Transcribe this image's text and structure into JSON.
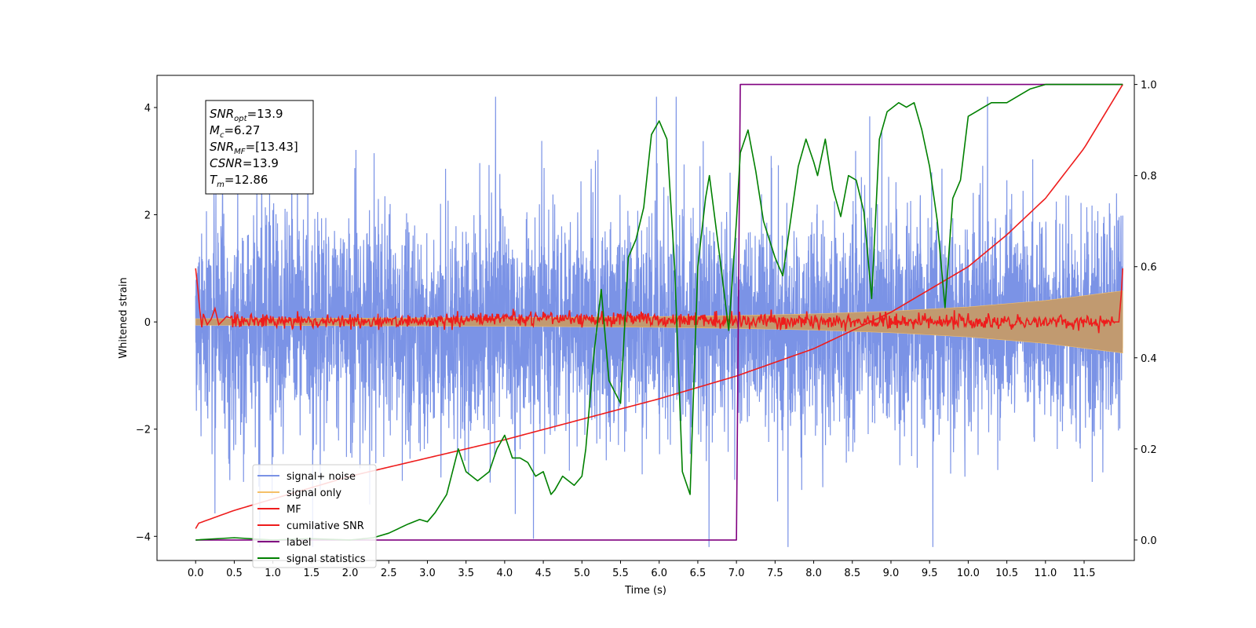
{
  "chart_data": {
    "type": "line",
    "xlabel": "Time (s)",
    "ylabel": "Whitened strain",
    "xlim": [
      -0.5,
      12.15
    ],
    "ylim": [
      -4.45,
      4.6
    ],
    "y2lim": [
      -0.045,
      1.02
    ],
    "x_ticks": [
      0.0,
      0.5,
      1.0,
      1.5,
      2.0,
      2.5,
      3.0,
      3.5,
      4.0,
      4.5,
      5.0,
      5.5,
      6.0,
      6.5,
      7.0,
      7.5,
      8.0,
      8.5,
      9.0,
      9.5,
      10.0,
      10.5,
      11.0,
      11.5
    ],
    "x_tick_labels": [
      "0.0",
      "0.5",
      "1.0",
      "1.5",
      "2.0",
      "2.5",
      "3.0",
      "3.5",
      "4.0",
      "4.5",
      "5.0",
      "5.5",
      "6.0",
      "6.5",
      "7.0",
      "7.5",
      "8.0",
      "8.5",
      "9.0",
      "9.5",
      "10.0",
      "10.5",
      "11.0",
      "11.5"
    ],
    "y_ticks": [
      -4,
      -2,
      0,
      2,
      4
    ],
    "y_tick_labels": [
      "−4",
      "−2",
      "0",
      "2",
      "4"
    ],
    "y2_ticks": [
      0.0,
      0.2,
      0.4,
      0.6,
      0.8,
      1.0
    ],
    "y2_tick_labels": [
      "0.0",
      "0.2",
      "0.4",
      "0.6",
      "0.8",
      "1.0"
    ],
    "grid": false,
    "legend_placement": "lower-left",
    "info_box": {
      "lines": [
        {
          "sym": "SNR",
          "sub": "opt",
          "value": "=13.9"
        },
        {
          "sym": "M",
          "sub": "c",
          "value": "=6.27"
        },
        {
          "sym": "SNR",
          "sub": "MF",
          "value": "=[13.43]"
        },
        {
          "sym": "CSNR",
          "sub": "",
          "value": "=13.9"
        },
        {
          "sym": "T",
          "sub": "m",
          "value": "=12.86"
        }
      ]
    },
    "series": [
      {
        "name": "signal+ noise",
        "axis": "left",
        "color": "#7b93e6",
        "kind": "noise",
        "x_range": [
          0.0,
          12.0
        ],
        "envelope_typical": 1.3,
        "envelope_peak": 4.2
      },
      {
        "name": "signal only",
        "axis": "left",
        "color": "#f5c068",
        "fill_color": "#c19a70",
        "kind": "chirp-envelope",
        "x": [
          0.0,
          1.0,
          2.0,
          3.0,
          4.0,
          5.0,
          6.0,
          7.0,
          8.0,
          9.0,
          10.0,
          11.0,
          12.0
        ],
        "amplitude": [
          0.06,
          0.065,
          0.07,
          0.075,
          0.08,
          0.09,
          0.1,
          0.12,
          0.15,
          0.2,
          0.28,
          0.4,
          0.58
        ]
      },
      {
        "name": "MF",
        "axis": "left",
        "color": "#ee1c1c",
        "kind": "mf",
        "x": [
          0.0,
          0.03,
          0.05,
          0.08,
          0.1,
          0.15,
          0.2,
          0.25,
          0.3,
          0.4,
          0.6,
          1.0,
          2.0,
          4.2,
          6.0,
          8.0,
          10.0,
          11.95,
          11.98,
          12.0
        ],
        "y": [
          1.0,
          0.6,
          0.28,
          -0.1,
          0.15,
          -0.05,
          0.05,
          0.25,
          -0.05,
          0.1,
          0.0,
          0.05,
          0.0,
          0.2,
          0.2,
          0.0,
          0.0,
          0.0,
          0.5,
          1.0
        ],
        "wiggle_amplitude": 0.07
      },
      {
        "name": "cumilative SNR",
        "axis": "right",
        "color": "#ee1c1c",
        "kind": "line",
        "x": [
          0.0,
          0.01,
          0.5,
          1.0,
          2.0,
          3.0,
          4.0,
          5.0,
          6.0,
          7.0,
          8.0,
          9.0,
          10.0,
          10.5,
          11.0,
          11.5,
          12.0
        ],
        "y": [
          0.025,
          0.035,
          0.065,
          0.09,
          0.14,
          0.18,
          0.22,
          0.265,
          0.31,
          0.36,
          0.42,
          0.5,
          0.6,
          0.67,
          0.75,
          0.86,
          1.0
        ]
      },
      {
        "name": "label",
        "axis": "right",
        "color": "#800080",
        "kind": "line",
        "x": [
          0.0,
          7.0,
          7.05,
          12.0
        ],
        "y": [
          0.0,
          0.0,
          1.0,
          1.0
        ]
      },
      {
        "name": "signal statistics",
        "axis": "right",
        "color": "#008000",
        "kind": "line",
        "x": [
          0.0,
          0.5,
          1.0,
          1.5,
          2.0,
          2.3,
          2.5,
          2.75,
          2.9,
          3.0,
          3.1,
          3.25,
          3.4,
          3.5,
          3.65,
          3.8,
          3.9,
          4.0,
          4.1,
          4.2,
          4.3,
          4.4,
          4.5,
          4.6,
          4.65,
          4.75,
          4.9,
          5.0,
          5.05,
          5.15,
          5.25,
          5.35,
          5.5,
          5.6,
          5.7,
          5.8,
          5.9,
          6.0,
          6.1,
          6.2,
          6.3,
          6.4,
          6.5,
          6.6,
          6.65,
          6.8,
          6.9,
          7.0,
          7.05,
          7.15,
          7.25,
          7.35,
          7.5,
          7.6,
          7.8,
          7.9,
          8.0,
          8.05,
          8.15,
          8.25,
          8.35,
          8.45,
          8.55,
          8.65,
          8.75,
          8.85,
          8.95,
          9.1,
          9.2,
          9.3,
          9.4,
          9.5,
          9.6,
          9.7,
          9.8,
          9.85,
          9.9,
          10.0,
          10.1,
          10.2,
          10.3,
          10.5,
          10.7,
          10.8,
          11.0,
          11.3,
          11.6,
          12.0
        ],
        "y": [
          0.0,
          0.005,
          0.0,
          0.003,
          0.0,
          0.005,
          0.015,
          0.035,
          0.045,
          0.04,
          0.06,
          0.1,
          0.2,
          0.15,
          0.13,
          0.15,
          0.2,
          0.23,
          0.18,
          0.18,
          0.17,
          0.14,
          0.15,
          0.1,
          0.11,
          0.14,
          0.12,
          0.14,
          0.2,
          0.4,
          0.55,
          0.35,
          0.3,
          0.62,
          0.66,
          0.73,
          0.89,
          0.92,
          0.88,
          0.6,
          0.15,
          0.1,
          0.6,
          0.75,
          0.8,
          0.6,
          0.46,
          0.7,
          0.85,
          0.9,
          0.81,
          0.7,
          0.62,
          0.58,
          0.82,
          0.88,
          0.83,
          0.8,
          0.88,
          0.77,
          0.71,
          0.8,
          0.79,
          0.72,
          0.53,
          0.88,
          0.94,
          0.96,
          0.95,
          0.96,
          0.9,
          0.82,
          0.7,
          0.51,
          0.75,
          0.77,
          0.79,
          0.93,
          0.94,
          0.95,
          0.96,
          0.96,
          0.98,
          0.99,
          1.0,
          1.0,
          1.0,
          1.0
        ]
      }
    ]
  }
}
